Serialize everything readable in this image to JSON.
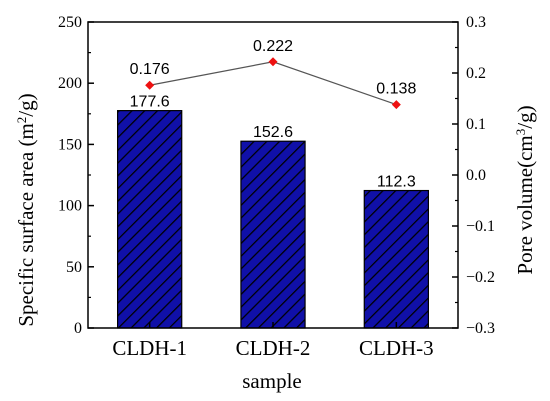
{
  "chart_data": {
    "type": "bar",
    "categories": [
      "CLDH-1",
      "CLDH-2",
      "CLDH-3"
    ],
    "xlabel": "sample",
    "series": [
      {
        "name": "Specific surface area",
        "axis": "left",
        "kind": "bar",
        "values": [
          177.6,
          152.6,
          112.3
        ],
        "labels": [
          "177.6",
          "152.6",
          "112.3"
        ]
      },
      {
        "name": "Pore volume",
        "axis": "right",
        "kind": "line",
        "values": [
          0.176,
          0.222,
          0.138
        ],
        "labels": [
          "0.176",
          "0.222",
          "0.138"
        ]
      }
    ],
    "left_axis": {
      "label_main": "Specific surface area (m",
      "label_sup": "2",
      "label_end": "/g)",
      "ylim": [
        0,
        250
      ],
      "ticks": [
        "0",
        "50",
        "100",
        "150",
        "200",
        "250"
      ]
    },
    "right_axis": {
      "label_main": "Pore volume(cm",
      "label_sup": "3",
      "label_end": "/g)",
      "ylim": [
        -0.3,
        0.3
      ],
      "ticks": [
        "−0.3",
        "−0.2",
        "−0.1",
        "0.0",
        "0.1",
        "0.2",
        "0.3"
      ]
    },
    "grid": false,
    "colors": {
      "bar_fill": "#1010a8",
      "bar_hatch": "#000000",
      "line": "#555555",
      "marker": "#ee1111"
    }
  }
}
